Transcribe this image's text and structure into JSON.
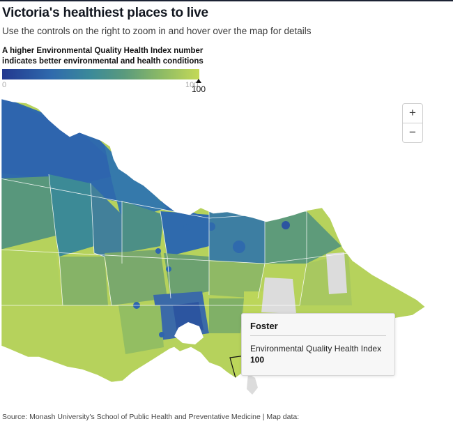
{
  "header": {
    "title": "Victoria's healthiest places to live",
    "subtitle": "Use the controls on the right to zoom in and hover over the map for details"
  },
  "legend": {
    "title": "A higher Environmental Quality Health Index number indicates better environmental and health conditions",
    "min_label": "0",
    "max_label": "100",
    "selected_value": "100",
    "selected_fraction": 1.0,
    "colors": {
      "low": "#23388f",
      "mid": "#3b8a99",
      "high": "#c4d957",
      "no_data": "#dcdcdc"
    }
  },
  "zoom_controls": {
    "zoom_in": "+",
    "zoom_out": "−"
  },
  "tooltip": {
    "place": "Foster",
    "metric": "Environmental Quality Health Index",
    "value": "100"
  },
  "footer": {
    "source": "Source: Monash University's School of Public Health and Preventative Medicine | Map data:"
  }
}
